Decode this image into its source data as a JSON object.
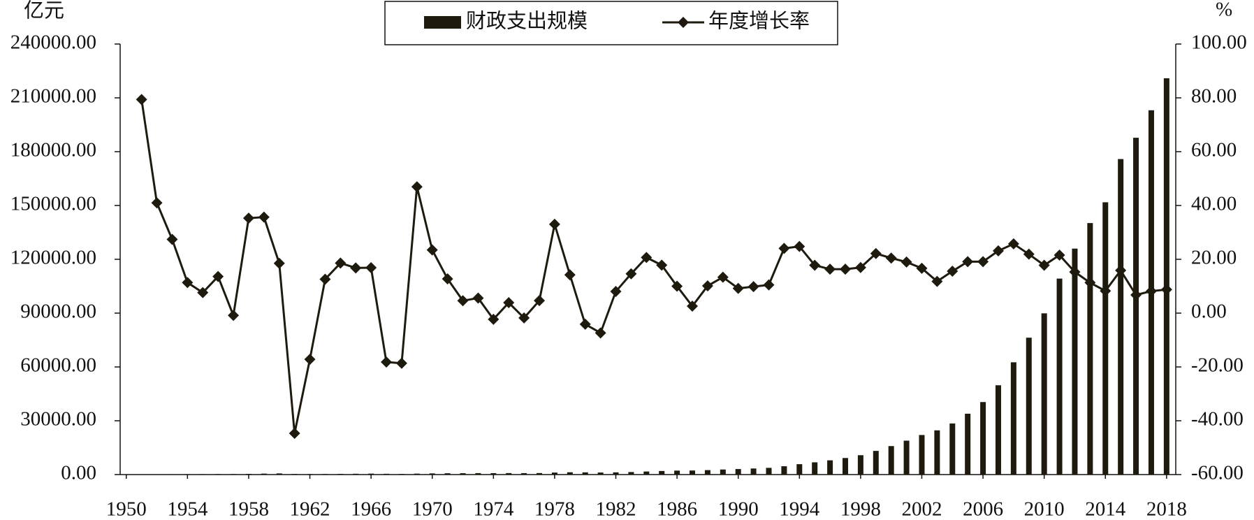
{
  "chart_data": {
    "type": "bar-line",
    "y_axis_label": "亿元",
    "y2_axis_label": "%",
    "x": [
      1950,
      1951,
      1952,
      1953,
      1954,
      1955,
      1956,
      1957,
      1958,
      1959,
      1960,
      1961,
      1962,
      1963,
      1964,
      1965,
      1966,
      1967,
      1968,
      1969,
      1970,
      1971,
      1972,
      1973,
      1974,
      1975,
      1976,
      1977,
      1978,
      1979,
      1980,
      1981,
      1982,
      1983,
      1984,
      1985,
      1986,
      1987,
      1988,
      1989,
      1990,
      1991,
      1992,
      1993,
      1994,
      1995,
      1996,
      1997,
      1998,
      1999,
      2000,
      2001,
      2002,
      2003,
      2004,
      2005,
      2006,
      2007,
      2008,
      2009,
      2010,
      2011,
      2012,
      2013,
      2014,
      2015,
      2016,
      2017,
      2018
    ],
    "xlim": [
      1949.6,
      2018.6
    ],
    "xticks": [
      1950,
      1954,
      1958,
      1962,
      1966,
      1970,
      1974,
      1978,
      1982,
      1986,
      1990,
      1994,
      1998,
      2002,
      2006,
      2010,
      2014,
      2018
    ],
    "ylim": [
      0,
      240000
    ],
    "yticks": [
      {
        "value": 0,
        "label": "0.00"
      },
      {
        "value": 30000,
        "label": "30000.00"
      },
      {
        "value": 60000,
        "label": "60000.00"
      },
      {
        "value": 90000,
        "label": "90000.00"
      },
      {
        "value": 120000,
        "label": "120000.00"
      },
      {
        "value": 150000,
        "label": "150000.00"
      },
      {
        "value": 180000,
        "label": "180000.00"
      },
      {
        "value": 210000,
        "label": "210000.00"
      },
      {
        "value": 240000,
        "label": "240000.00"
      }
    ],
    "y2lim": [
      -60,
      100
    ],
    "y2ticks": [
      {
        "value": -60,
        "label": "-60.00"
      },
      {
        "value": -40,
        "label": "-40.00"
      },
      {
        "value": -20,
        "label": "-20.00"
      },
      {
        "value": 0,
        "label": "0.00"
      },
      {
        "value": 20,
        "label": "20.00"
      },
      {
        "value": 40,
        "label": "40.00"
      },
      {
        "value": 60,
        "label": "60.00"
      },
      {
        "value": 80,
        "label": "80.00"
      },
      {
        "value": 100,
        "label": "100.00"
      }
    ],
    "legend": "top",
    "series": [
      {
        "name": "财政支出规模",
        "kind": "bar",
        "color": "#1e1a0e",
        "values": [
          68.05,
          122.07,
          172.07,
          219.21,
          244.11,
          262.73,
          298.52,
          295.95,
          400.36,
          543.17,
          643.68,
          356.09,
          294.88,
          332.05,
          393.79,
          459.97,
          537.65,
          439.84,
          357.84,
          525.86,
          649.41,
          732.17,
          765.86,
          808.78,
          790.25,
          820.88,
          806.2,
          843.53,
          1122.09,
          1281.79,
          1228.83,
          1138.41,
          1229.98,
          1409.52,
          1701.02,
          2004.25,
          2204.91,
          2262.18,
          2491.21,
          2823.78,
          3083.59,
          3386.62,
          3742.2,
          4642.3,
          5792.62,
          6823.72,
          7937.55,
          9233.56,
          10798.18,
          13187.67,
          15886.5,
          18902.58,
          22053.15,
          24649.95,
          28486.89,
          33930.28,
          40422.73,
          49781.35,
          62592.66,
          76299.93,
          89874.16,
          109247.79,
          125952.97,
          140212.1,
          151785.56,
          175877.77,
          187755.21,
          203085.49,
          220904.13
        ]
      },
      {
        "name": "年度增长率",
        "kind": "line",
        "axis": "y2",
        "color": "#1e1a0e",
        "values": [
          null,
          79.38,
          40.96,
          27.4,
          11.36,
          7.63,
          13.62,
          -0.86,
          35.28,
          35.67,
          18.5,
          -44.68,
          -17.19,
          12.6,
          18.59,
          16.8,
          16.89,
          -18.19,
          -18.64,
          46.95,
          23.49,
          12.74,
          4.6,
          5.6,
          -2.29,
          3.88,
          -1.79,
          4.63,
          33.02,
          14.23,
          -4.13,
          -7.36,
          8.05,
          14.6,
          20.68,
          17.83,
          10.01,
          2.6,
          10.12,
          13.35,
          9.2,
          9.83,
          10.5,
          24.05,
          24.78,
          17.8,
          16.32,
          16.33,
          16.94,
          22.13,
          20.46,
          18.98,
          16.67,
          11.78,
          15.57,
          19.11,
          19.13,
          23.15,
          25.74,
          21.9,
          17.79,
          21.56,
          15.29,
          11.32,
          8.25,
          15.87,
          6.75,
          8.17,
          8.77
        ]
      }
    ]
  }
}
